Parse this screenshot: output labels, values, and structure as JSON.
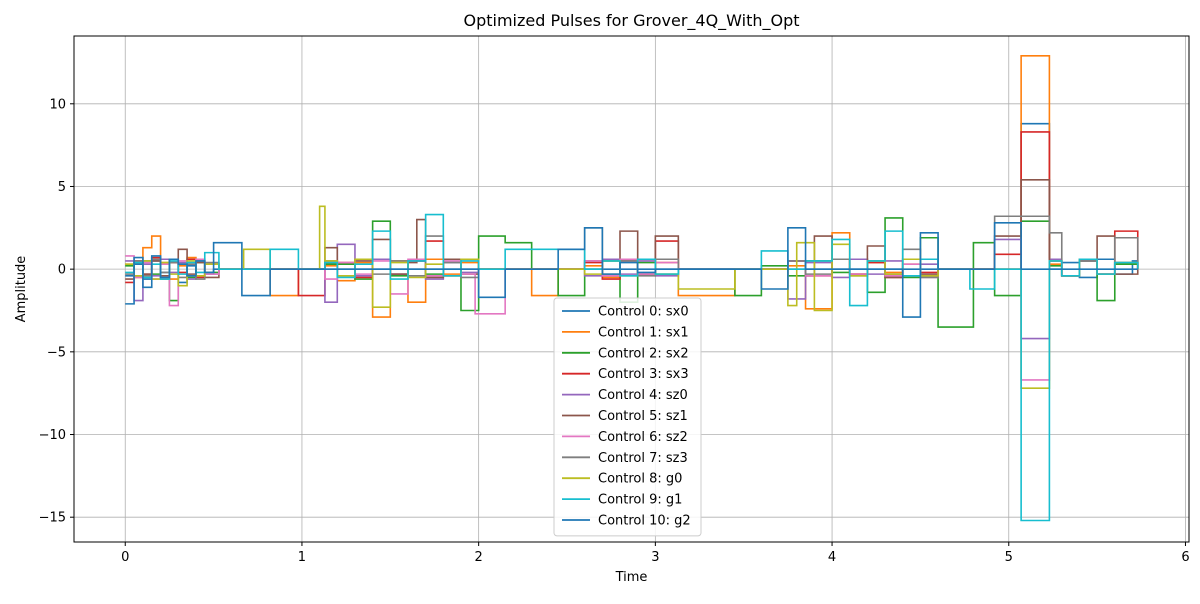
{
  "chart_data": {
    "type": "line",
    "step": true,
    "title": "Optimized Pulses for Grover_4Q_With_Opt",
    "xlabel": "Time",
    "ylabel": "Amplitude",
    "xlim": [
      -0.29,
      6.02
    ],
    "ylim": [
      -16.5,
      14.1
    ],
    "xticks": [
      0,
      1,
      2,
      3,
      4,
      5,
      6
    ],
    "yticks": [
      -15,
      -10,
      -5,
      0,
      5,
      10
    ],
    "grid": true,
    "legend_position": "lower-center",
    "series": [
      {
        "name": "Control 0: sx0",
        "color": "#1f77b4",
        "x": [
          0.0,
          0.05,
          0.1,
          0.15,
          0.2,
          0.25,
          0.3,
          0.35,
          0.4,
          0.45,
          0.5,
          0.53,
          0.66,
          0.82,
          0.98,
          1.13,
          1.3,
          1.5,
          1.7,
          1.9,
          2.0,
          2.15,
          2.3,
          2.45,
          2.6,
          2.7,
          2.8,
          2.9,
          3.0,
          3.13,
          3.3,
          3.45,
          3.6,
          3.75,
          3.8,
          3.9,
          4.0,
          4.1,
          4.2,
          4.3,
          4.4,
          4.5,
          4.6,
          4.8,
          4.92,
          5.07,
          5.23,
          5.3,
          5.4,
          5.5,
          5.6,
          5.7,
          5.73
        ],
        "y": [
          -0.4,
          0.3,
          -0.6,
          0.5,
          -0.2,
          0.4,
          -0.8,
          0.2,
          0.6,
          -0.3,
          0.0,
          0.0,
          0.0,
          0.0,
          0.0,
          0.0,
          0.0,
          0.0,
          0.0,
          0.0,
          0.0,
          0.0,
          0.0,
          0.0,
          0.0,
          0.0,
          0.0,
          0.0,
          0.0,
          0.0,
          0.0,
          0.0,
          0.0,
          0.0,
          0.0,
          0.0,
          0.0,
          0.0,
          0.0,
          0.0,
          0.0,
          0.0,
          0.0,
          0.0,
          0.0,
          8.8,
          0.0,
          0.4,
          -0.5,
          0.6,
          -0.3,
          0.5,
          0.0
        ]
      },
      {
        "name": "Control 1: sx1",
        "color": "#ff7f0e",
        "x": [
          0.0,
          0.05,
          0.1,
          0.15,
          0.2,
          0.25,
          0.3,
          0.35,
          0.4,
          0.45,
          0.53,
          0.82,
          0.98,
          1.13,
          1.2,
          1.3,
          1.4,
          1.5,
          1.6,
          1.7,
          1.8,
          1.9,
          2.0,
          2.15,
          2.3,
          2.45,
          2.6,
          2.7,
          2.8,
          2.9,
          3.0,
          3.13,
          3.3,
          3.45,
          3.6,
          3.75,
          3.85,
          4.0,
          4.1,
          4.2,
          4.3,
          4.4,
          4.5,
          4.6,
          4.8,
          4.92,
          5.07,
          5.23,
          5.3,
          5.4,
          5.5,
          5.6,
          5.73
        ],
        "y": [
          0.3,
          -0.5,
          1.3,
          2.0,
          0.4,
          -0.6,
          0.2,
          0.7,
          -0.4,
          0.3,
          0.0,
          -1.6,
          0.0,
          0.2,
          -0.7,
          0.4,
          -2.9,
          0.5,
          -2.0,
          0.6,
          -0.3,
          0.4,
          0.0,
          0.0,
          -1.6,
          0.0,
          0.2,
          -0.5,
          0.6,
          -0.3,
          0.4,
          -1.6,
          -1.6,
          0.0,
          0.0,
          0.2,
          -2.4,
          2.2,
          -0.3,
          0.4,
          -0.2,
          0.3,
          -0.4,
          0.0,
          0.0,
          0.0,
          12.9,
          0.3,
          -0.4,
          0.5,
          -0.3,
          0.4,
          0.0
        ]
      },
      {
        "name": "Control 2: sx2",
        "color": "#2ca02c",
        "x": [
          0.0,
          0.05,
          0.1,
          0.15,
          0.2,
          0.25,
          0.3,
          0.35,
          0.4,
          0.45,
          0.53,
          1.13,
          1.3,
          1.4,
          1.5,
          1.6,
          1.7,
          1.8,
          1.9,
          2.0,
          2.15,
          2.3,
          2.45,
          2.6,
          2.7,
          2.8,
          2.9,
          3.0,
          3.13,
          3.45,
          3.6,
          3.75,
          3.85,
          4.0,
          4.1,
          4.2,
          4.3,
          4.4,
          4.5,
          4.6,
          4.8,
          4.92,
          5.07,
          5.23,
          5.3,
          5.4,
          5.5,
          5.6,
          5.73
        ],
        "y": [
          0.2,
          -0.4,
          0.5,
          -0.3,
          0.6,
          -1.9,
          0.3,
          -0.5,
          0.4,
          -0.2,
          0.0,
          0.3,
          -0.6,
          2.9,
          -0.4,
          0.5,
          -0.3,
          0.6,
          -2.5,
          2.0,
          1.6,
          0.0,
          -1.6,
          0.0,
          0.5,
          -2.0,
          0.4,
          -0.3,
          0.0,
          -1.6,
          0.2,
          -0.4,
          0.5,
          -0.2,
          0.6,
          -1.4,
          3.1,
          -0.5,
          1.9,
          -3.5,
          1.6,
          -1.6,
          2.9,
          0.2,
          -0.4,
          0.5,
          -1.9,
          0.3,
          0.0
        ]
      },
      {
        "name": "Control 3: sx3",
        "color": "#d62728",
        "x": [
          0.0,
          0.05,
          0.1,
          0.15,
          0.2,
          0.25,
          0.3,
          0.35,
          0.4,
          0.45,
          0.53,
          0.98,
          1.13,
          1.3,
          1.4,
          1.5,
          1.6,
          1.7,
          1.8,
          1.9,
          2.0,
          2.6,
          2.7,
          2.8,
          2.9,
          3.0,
          3.13,
          3.75,
          3.85,
          4.0,
          4.1,
          4.2,
          4.3,
          4.4,
          4.5,
          4.6,
          4.92,
          5.07,
          5.23,
          5.3,
          5.4,
          5.5,
          5.6,
          5.73
        ],
        "y": [
          -0.8,
          0.5,
          -0.3,
          0.7,
          -0.6,
          0.4,
          -0.2,
          0.6,
          -0.5,
          0.3,
          0.0,
          -1.6,
          0.4,
          -0.5,
          0.6,
          -0.3,
          0.5,
          1.7,
          -0.4,
          0.6,
          0.0,
          0.4,
          -0.6,
          0.5,
          -0.3,
          1.7,
          0.0,
          0.5,
          -0.4,
          0.6,
          -0.3,
          0.4,
          -0.5,
          0.6,
          -0.2,
          0.0,
          0.9,
          8.3,
          0.5,
          -0.4,
          0.6,
          -0.3,
          2.3,
          0.0
        ]
      },
      {
        "name": "Control 4: sz0",
        "color": "#9467bd",
        "x": [
          0.0,
          0.05,
          0.1,
          0.15,
          0.2,
          0.25,
          0.3,
          0.35,
          0.4,
          0.45,
          0.53,
          1.13,
          1.2,
          1.3,
          1.4,
          1.5,
          1.6,
          1.7,
          1.8,
          1.9,
          2.0,
          2.6,
          2.7,
          2.8,
          2.9,
          3.0,
          3.13,
          3.75,
          3.85,
          4.0,
          4.1,
          4.2,
          4.3,
          4.4,
          4.5,
          4.6,
          4.92,
          5.07,
          5.23,
          5.3,
          5.4,
          5.5,
          5.6,
          5.73
        ],
        "y": [
          0.5,
          -1.9,
          0.3,
          -0.4,
          0.6,
          -0.2,
          0.4,
          -0.6,
          0.5,
          -0.3,
          0.0,
          -2.0,
          1.5,
          -0.4,
          0.6,
          -0.3,
          0.5,
          -0.6,
          0.4,
          -0.2,
          0.0,
          -0.4,
          0.6,
          -0.3,
          0.5,
          -0.4,
          0.0,
          -1.8,
          0.4,
          -0.5,
          0.6,
          -0.3,
          0.5,
          -0.4,
          0.3,
          0.0,
          1.8,
          -4.2,
          0.6,
          -0.4,
          0.5,
          -0.3,
          0.4,
          0.0
        ]
      },
      {
        "name": "Control 5: sz1",
        "color": "#8c564b",
        "x": [
          0.0,
          0.05,
          0.1,
          0.15,
          0.2,
          0.25,
          0.3,
          0.35,
          0.4,
          0.45,
          0.53,
          1.13,
          1.2,
          1.3,
          1.4,
          1.5,
          1.6,
          1.65,
          1.7,
          1.8,
          1.9,
          2.0,
          2.6,
          2.7,
          2.8,
          2.9,
          3.0,
          3.13,
          3.75,
          3.85,
          3.9,
          4.0,
          4.1,
          4.2,
          4.3,
          4.4,
          4.5,
          4.6,
          4.92,
          5.07,
          5.23,
          5.3,
          5.4,
          5.5,
          5.6,
          5.73
        ],
        "y": [
          -0.6,
          0.4,
          -0.3,
          0.5,
          -0.4,
          0.6,
          1.2,
          -0.3,
          0.4,
          -0.5,
          0.0,
          1.3,
          -0.4,
          0.5,
          1.8,
          -0.3,
          0.4,
          3.0,
          -0.5,
          0.6,
          -0.3,
          0.0,
          0.5,
          -0.4,
          2.3,
          -0.3,
          2.0,
          0.0,
          0.5,
          -0.4,
          2.0,
          0.6,
          -0.3,
          1.4,
          -0.5,
          0.6,
          -0.3,
          0.0,
          2.0,
          5.4,
          0.5,
          -0.4,
          0.6,
          2.0,
          -0.3,
          0.0
        ]
      },
      {
        "name": "Control 6: sz2",
        "color": "#e377c2",
        "x": [
          0.0,
          0.05,
          0.1,
          0.15,
          0.2,
          0.25,
          0.3,
          0.35,
          0.4,
          0.45,
          0.53,
          1.13,
          1.2,
          1.3,
          1.4,
          1.5,
          1.6,
          1.7,
          1.8,
          1.9,
          1.98,
          2.15,
          2.6,
          2.7,
          2.8,
          2.9,
          3.0,
          3.13,
          3.75,
          3.85,
          4.0,
          4.1,
          4.2,
          4.3,
          4.4,
          4.5,
          4.6,
          4.92,
          5.07,
          5.23,
          5.3,
          5.4,
          5.5,
          5.6,
          5.73
        ],
        "y": [
          0.8,
          -0.5,
          0.4,
          -0.6,
          0.3,
          -2.2,
          0.5,
          -0.4,
          0.6,
          -0.3,
          0.0,
          -0.6,
          0.4,
          -0.3,
          0.5,
          -1.5,
          0.6,
          -0.4,
          0.5,
          -0.3,
          -2.7,
          0.0,
          0.5,
          -0.4,
          0.6,
          -0.3,
          0.4,
          0.0,
          0.5,
          -0.4,
          0.6,
          -0.3,
          0.5,
          -0.4,
          0.3,
          -0.5,
          0.0,
          0.0,
          -6.7,
          0.5,
          -0.4,
          0.6,
          -0.3,
          0.4,
          0.0
        ]
      },
      {
        "name": "Control 7: sz3",
        "color": "#7f7f7f",
        "x": [
          0.0,
          0.05,
          0.1,
          0.15,
          0.2,
          0.25,
          0.3,
          0.35,
          0.4,
          0.45,
          0.53,
          1.13,
          1.2,
          1.3,
          1.4,
          1.5,
          1.6,
          1.7,
          1.8,
          1.9,
          2.0,
          2.6,
          2.7,
          2.8,
          2.9,
          3.0,
          3.13,
          3.75,
          3.85,
          4.0,
          4.1,
          4.2,
          4.3,
          4.4,
          4.5,
          4.6,
          4.92,
          5.07,
          5.23,
          5.3,
          5.4,
          5.5,
          5.6,
          5.73
        ],
        "y": [
          -0.3,
          0.5,
          -0.4,
          0.6,
          -0.2,
          0.4,
          -0.5,
          0.3,
          -0.6,
          0.4,
          0.0,
          0.5,
          -0.4,
          0.6,
          -0.3,
          0.5,
          -0.4,
          2.0,
          0.4,
          -0.5,
          0.0,
          2.5,
          -0.3,
          0.5,
          -0.4,
          0.6,
          0.0,
          0.5,
          -0.3,
          0.6,
          -0.4,
          0.5,
          -0.3,
          1.2,
          -0.5,
          0.0,
          3.2,
          3.2,
          2.2,
          -0.4,
          0.5,
          -0.3,
          1.9,
          0.0
        ]
      },
      {
        "name": "Control 8: g0",
        "color": "#bcbd22",
        "x": [
          0.0,
          0.05,
          0.1,
          0.15,
          0.2,
          0.25,
          0.3,
          0.35,
          0.4,
          0.45,
          0.53,
          0.67,
          0.82,
          1.1,
          1.13,
          1.2,
          1.3,
          1.4,
          1.5,
          1.6,
          1.7,
          1.8,
          1.9,
          2.0,
          2.6,
          2.7,
          2.8,
          2.9,
          3.0,
          3.13,
          3.3,
          3.45,
          3.6,
          3.75,
          3.8,
          3.9,
          4.0,
          4.1,
          4.2,
          4.3,
          4.4,
          4.5,
          4.6,
          4.92,
          5.07,
          5.23,
          5.3,
          5.4,
          5.5,
          5.6,
          5.73
        ],
        "y": [
          0.3,
          -0.4,
          0.5,
          -0.6,
          0.4,
          -0.3,
          -1.0,
          0.5,
          -0.4,
          0.3,
          0.0,
          1.2,
          0.0,
          3.8,
          0.5,
          -0.4,
          0.6,
          -2.3,
          0.4,
          -0.5,
          0.3,
          -0.4,
          0.6,
          0.0,
          -0.3,
          0.5,
          -0.4,
          0.6,
          -0.3,
          -1.2,
          -1.2,
          0.0,
          0.0,
          -2.2,
          1.6,
          -2.5,
          1.5,
          -0.4,
          0.5,
          -0.3,
          0.6,
          -0.4,
          0.0,
          0.0,
          -7.2,
          0.5,
          -0.4,
          0.6,
          -0.3,
          0.4,
          0.0
        ]
      },
      {
        "name": "Control 9: g1",
        "color": "#17becf",
        "x": [
          0.0,
          0.05,
          0.1,
          0.15,
          0.2,
          0.25,
          0.3,
          0.35,
          0.4,
          0.45,
          0.53,
          0.82,
          0.98,
          1.13,
          1.2,
          1.3,
          1.4,
          1.5,
          1.6,
          1.7,
          1.8,
          1.9,
          2.0,
          2.15,
          2.45,
          2.6,
          2.7,
          2.8,
          2.9,
          3.0,
          3.13,
          3.6,
          3.75,
          3.85,
          4.0,
          4.1,
          4.2,
          4.3,
          4.4,
          4.5,
          4.6,
          4.78,
          4.92,
          5.07,
          5.23,
          5.3,
          5.4,
          5.5,
          5.6,
          5.73
        ],
        "y": [
          -0.2,
          0.4,
          -0.5,
          0.3,
          -0.6,
          0.5,
          -0.3,
          0.4,
          -0.2,
          1.0,
          0.0,
          1.2,
          0.0,
          0.4,
          -0.5,
          0.3,
          2.3,
          -0.6,
          0.5,
          3.3,
          -0.4,
          0.5,
          0.0,
          1.2,
          1.2,
          0.0,
          0.5,
          -0.4,
          0.6,
          -0.3,
          0.0,
          1.1,
          0.0,
          0.5,
          1.8,
          -2.2,
          0.5,
          2.3,
          -0.4,
          0.6,
          0.0,
          -1.2,
          0.0,
          -15.2,
          0.5,
          -0.4,
          0.6,
          -0.3,
          0.4,
          0.0
        ]
      },
      {
        "name": "Control 10: g2",
        "color": "#1f77b4",
        "x": [
          0.0,
          0.05,
          0.1,
          0.15,
          0.2,
          0.25,
          0.3,
          0.35,
          0.4,
          0.45,
          0.5,
          0.66,
          0.82,
          0.98,
          1.13,
          1.3,
          1.5,
          1.7,
          1.9,
          2.0,
          2.15,
          2.45,
          2.6,
          2.7,
          2.8,
          2.9,
          3.0,
          3.13,
          3.45,
          3.6,
          3.75,
          3.85,
          4.0,
          4.1,
          4.2,
          4.3,
          4.4,
          4.5,
          4.6,
          4.92,
          5.07,
          5.23,
          5.3,
          5.4,
          5.5,
          5.6,
          5.73
        ],
        "y": [
          -2.1,
          0.7,
          -1.1,
          0.8,
          -0.5,
          0.6,
          0.3,
          -0.4,
          0.5,
          -0.2,
          1.6,
          -1.6,
          0.0,
          0.0,
          0.0,
          0.0,
          0.0,
          0.0,
          0.0,
          -1.7,
          0.0,
          1.2,
          2.5,
          -0.3,
          0.4,
          -0.2,
          0.0,
          0.0,
          0.0,
          -1.2,
          2.5,
          0.0,
          0.0,
          0.0,
          0.0,
          0.0,
          -2.9,
          2.2,
          0.0,
          2.8,
          0.0,
          0.0,
          0.0,
          0.0,
          0.0,
          0.0,
          0.0
        ]
      }
    ]
  }
}
